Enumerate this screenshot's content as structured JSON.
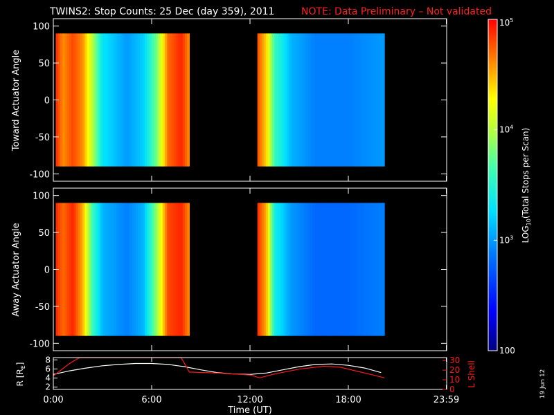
{
  "title": "TWINS2: Stop Counts: 25 Dec (day 359), 2011",
  "note": "NOTE: Data Preliminary – Not validated",
  "date_stamp": "19 Jun 12",
  "colors": {
    "background": "#000000",
    "axes": "#ffffff",
    "note": "#ff2020",
    "lshell": "#ff1a1a",
    "radius": "#ffffff"
  },
  "chart_data": [
    {
      "type": "heatmap",
      "ylabel": "Toward Actuator Angle",
      "ylim": [
        -110,
        110
      ],
      "yticks": [
        -100,
        -50,
        0,
        50,
        100
      ],
      "xlim": [
        0,
        24
      ],
      "data_windows": [
        {
          "start_hour": 0.15,
          "end_hour": 8.3
        },
        {
          "start_hour": 12.45,
          "end_hour": 20.2
        }
      ],
      "angle_range": [
        -90,
        90
      ],
      "log10_counts_profile": [
        {
          "x": 0.15,
          "z": 4.9
        },
        {
          "x": 0.6,
          "z": 4.6
        },
        {
          "x": 1.2,
          "z": 4.8
        },
        {
          "x": 1.8,
          "z": 4.6
        },
        {
          "x": 2.4,
          "z": 4.0
        },
        {
          "x": 3.0,
          "z": 3.3
        },
        {
          "x": 4.5,
          "z": 3.0
        },
        {
          "x": 5.5,
          "z": 3.2
        },
        {
          "x": 6.3,
          "z": 3.8
        },
        {
          "x": 7.0,
          "z": 4.7
        },
        {
          "x": 7.8,
          "z": 4.9
        },
        {
          "x": 8.3,
          "z": 4.6
        },
        {
          "x": 12.45,
          "z": 4.8
        },
        {
          "x": 13.0,
          "z": 4.4
        },
        {
          "x": 13.5,
          "z": 3.6
        },
        {
          "x": 14.5,
          "z": 3.1
        },
        {
          "x": 16.0,
          "z": 2.9
        },
        {
          "x": 18.0,
          "z": 2.9
        },
        {
          "x": 20.2,
          "z": 3.0
        }
      ]
    },
    {
      "type": "heatmap",
      "ylabel": "Away Actuator Angle",
      "ylim": [
        -110,
        110
      ],
      "yticks": [
        -100,
        -50,
        0,
        50,
        100
      ],
      "xlim": [
        0,
        24
      ],
      "data_windows": [
        {
          "start_hour": 0.15,
          "end_hour": 8.3
        },
        {
          "start_hour": 12.45,
          "end_hour": 20.2
        }
      ],
      "angle_range": [
        -90,
        90
      ],
      "log10_counts_profile": [
        {
          "x": 0.15,
          "z": 4.9
        },
        {
          "x": 0.6,
          "z": 4.7
        },
        {
          "x": 1.2,
          "z": 4.9
        },
        {
          "x": 1.8,
          "z": 4.5
        },
        {
          "x": 2.4,
          "z": 3.6
        },
        {
          "x": 3.0,
          "z": 3.1
        },
        {
          "x": 4.5,
          "z": 2.9
        },
        {
          "x": 5.5,
          "z": 3.1
        },
        {
          "x": 6.3,
          "z": 3.9
        },
        {
          "x": 7.0,
          "z": 4.8
        },
        {
          "x": 7.8,
          "z": 4.9
        },
        {
          "x": 8.3,
          "z": 4.6
        },
        {
          "x": 12.45,
          "z": 4.9
        },
        {
          "x": 13.0,
          "z": 4.5
        },
        {
          "x": 13.5,
          "z": 3.4
        },
        {
          "x": 14.5,
          "z": 3.0
        },
        {
          "x": 16.0,
          "z": 2.8
        },
        {
          "x": 18.0,
          "z": 2.8
        },
        {
          "x": 20.2,
          "z": 2.9
        }
      ]
    },
    {
      "type": "line",
      "xlabel": "Time (UT)",
      "xticks": [
        "0:00",
        "6:00",
        "12:00",
        "18:00",
        "23:59"
      ],
      "xtick_hours": [
        0,
        6,
        12,
        18,
        23.98
      ],
      "xlim": [
        0,
        24
      ],
      "ylabel_left": "R [R",
      "ylabel_left_sub": "E",
      "ylabel_left_close": "]",
      "ylim_left": [
        1.5,
        8.5
      ],
      "yticks_left": [
        2,
        4,
        6,
        8
      ],
      "ylabel_right": "L Shell",
      "ylim_right": [
        0,
        33
      ],
      "yticks_right": [
        0,
        10,
        20,
        30
      ],
      "series": [
        {
          "axis": "left",
          "color": "#ffffff",
          "x": [
            0.0,
            1.0,
            2.0,
            3.0,
            4.0,
            5.0,
            6.0,
            7.0,
            8.0,
            9.0,
            10.0,
            11.0,
            12.0,
            13.0,
            14.0,
            15.0,
            16.0,
            17.0,
            18.0,
            19.0,
            20.0
          ],
          "y": [
            4.8,
            5.6,
            6.2,
            6.7,
            7.0,
            7.2,
            7.2,
            7.0,
            6.5,
            5.8,
            5.2,
            4.9,
            4.8,
            5.1,
            5.8,
            6.5,
            7.0,
            7.1,
            6.8,
            6.2,
            5.2
          ]
        },
        {
          "axis": "right",
          "color": "#ff1a1a",
          "x": [
            0.0,
            1.0,
            1.6,
            7.8,
            8.3,
            10.0,
            12.0,
            12.6,
            13.5,
            15.0,
            16.5,
            17.5,
            18.5,
            19.5,
            20.2
          ],
          "y": [
            14,
            27,
            33,
            33,
            18,
            17,
            15,
            12,
            16,
            21,
            24,
            23,
            19,
            15,
            12
          ]
        }
      ]
    },
    {
      "type": "colorbar",
      "label_prefix": "LOG",
      "label_sub": "10",
      "label_suffix": "(Total Stops per Scan)",
      "range_log10": [
        2,
        5
      ],
      "tick_labels": [
        {
          "value": 5,
          "base": "10",
          "exp": "5"
        },
        {
          "value": 4,
          "base": "10",
          "exp": "4"
        },
        {
          "value": 3,
          "base": "10",
          "exp": "3"
        },
        {
          "value": 2,
          "base": "100",
          "exp": ""
        }
      ]
    }
  ]
}
